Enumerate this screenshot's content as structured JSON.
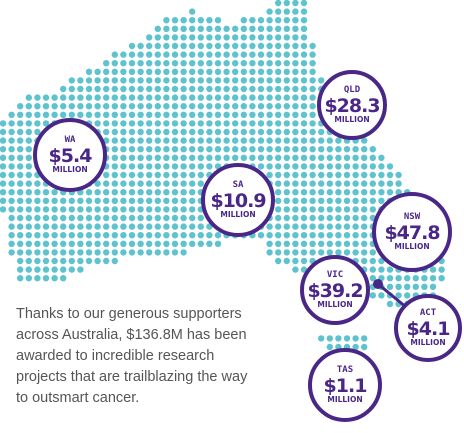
{
  "regions": [
    {
      "state": "WA",
      "amount": "$5.4",
      "unit": "MILLION"
    },
    {
      "state": "QLD",
      "amount": "$28.3",
      "unit": "MILLION"
    },
    {
      "state": "SA",
      "amount": "$10.9",
      "unit": "MILLION"
    },
    {
      "state": "NSW",
      "amount": "$47.8",
      "unit": "MILLION"
    },
    {
      "state": "VIC",
      "amount": "$39.2",
      "unit": "MILLION"
    },
    {
      "state": "ACT",
      "amount": "$4.1",
      "unit": "MILLION"
    },
    {
      "state": "TAS",
      "amount": "$1.1",
      "unit": "MILLION"
    }
  ],
  "text": {
    "lines": [
      "Thanks to our generous supporters",
      "across Australia, $136.8M has been",
      "awarded to incredible research",
      "projects that are trailblazing the way",
      "to outsmart cancer."
    ]
  }
}
